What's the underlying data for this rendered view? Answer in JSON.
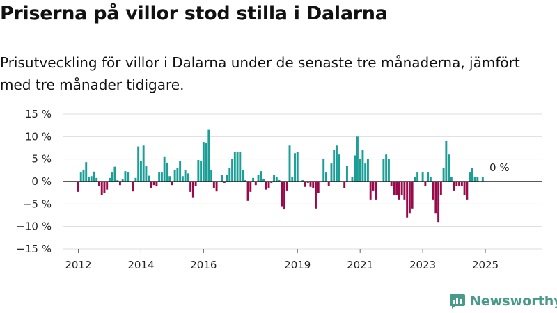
{
  "title": "Priserna på villor stod stilla i Dalarna",
  "subtitle": "Prisutveckling för villor i Dalarna under de senaste tre månaderna, jämfört med tre månader tidigare.",
  "brand": "Newsworthy",
  "colors": {
    "positive": "#1a9e96",
    "negative": "#990a4a",
    "grid": "#dddddd",
    "zero": "#222222",
    "brand": "#4a9a8c"
  },
  "chart_data": {
    "type": "bar",
    "title": "Priserna på villor stod stilla i Dalarna",
    "xlabel": "",
    "ylabel": "",
    "ylim": [
      -15,
      15
    ],
    "yticks": [
      15,
      10,
      5,
      0,
      -5,
      -10,
      -15
    ],
    "ytick_labels": [
      "15 %",
      "10 %",
      "5 %",
      "0 %",
      "−5 %",
      "−10 %",
      "−15 %"
    ],
    "xlim": [
      2011.5,
      2026.8
    ],
    "xticks": [
      2012,
      2014,
      2016,
      2019,
      2021,
      2023,
      2025
    ],
    "xtick_labels": [
      "2012",
      "2014",
      "2016",
      "2019",
      "2021",
      "2023",
      "2025"
    ],
    "start_date": "2012-01",
    "frequency": "monthly",
    "last_value_label": "0 %",
    "values": [
      -2.3,
      2.0,
      2.5,
      4.3,
      1.0,
      1.2,
      2.2,
      0.8,
      -1.0,
      -3.0,
      -2.5,
      -1.8,
      0.8,
      2.0,
      3.3,
      0.3,
      -0.8,
      0.5,
      2.3,
      2.0,
      0.0,
      -2.2,
      0.8,
      7.8,
      4.5,
      8.0,
      3.5,
      1.3,
      -1.5,
      -0.8,
      -1.0,
      2.0,
      2.0,
      5.6,
      4.2,
      1.2,
      -0.8,
      2.5,
      3.0,
      4.5,
      1.2,
      2.5,
      1.8,
      -2.3,
      -3.5,
      -1.0,
      4.8,
      4.5,
      8.8,
      8.5,
      11.5,
      2.5,
      -1.5,
      -2.2,
      0.0,
      1.5,
      -0.3,
      1.5,
      3.0,
      5.0,
      6.5,
      6.5,
      6.5,
      2.5,
      0.3,
      -4.3,
      -2.3,
      0.8,
      -0.8,
      1.5,
      2.3,
      0.5,
      -1.8,
      -1.5,
      -0.3,
      1.5,
      1.0,
      0.3,
      -5.5,
      -6.2,
      -2.0,
      8.0,
      1.0,
      6.3,
      6.5,
      0.0,
      0.3,
      -1.2,
      -0.3,
      -1.2,
      -1.5,
      -6.0,
      -2.5,
      0.0,
      5.0,
      2.0,
      -1.0,
      4.0,
      7.0,
      8.0,
      6.0,
      0.0,
      -1.5,
      3.5,
      0.0,
      1.0,
      5.8,
      10.0,
      5.0,
      7.0,
      4.0,
      5.0,
      -4.0,
      -2.0,
      -4.0,
      0.0,
      0.0,
      5.0,
      6.0,
      5.0,
      -1.0,
      -3.0,
      -3.0,
      -4.0,
      -3.0,
      -4.0,
      -8.0,
      -7.0,
      -6.0,
      1.0,
      2.0,
      0.0,
      2.0,
      -1.0,
      2.0,
      1.0,
      -4.0,
      -7.0,
      -9.0,
      -3.0,
      3.0,
      9.0,
      6.0,
      1.0,
      -2.0,
      -1.0,
      -1.0,
      -1.0,
      -3.0,
      -4.0,
      2.0,
      3.0,
      1.0,
      1.0,
      0.0,
      1.0,
      0.0
    ]
  }
}
